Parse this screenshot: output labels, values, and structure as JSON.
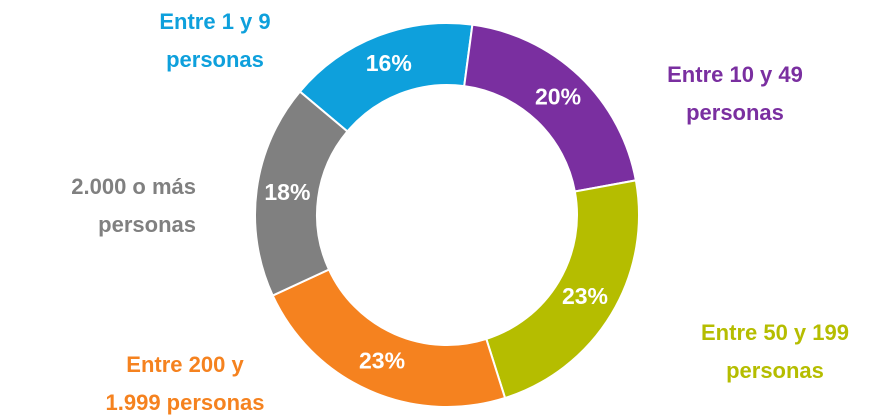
{
  "chart_data": {
    "type": "donut",
    "categories": [
      "Entre 1 y 9\npersonas",
      "Entre 10 y 49\npersonas",
      "Entre 50 y 199\npersonas",
      "Entre 200 y\n1.999 personas",
      "2.000 o más\npersonas"
    ],
    "values": [
      16,
      20,
      23,
      23,
      18
    ],
    "value_labels": [
      "16%",
      "20%",
      "23%",
      "23%",
      "18%"
    ],
    "colors": [
      "#0ea0dc",
      "#7a2fa0",
      "#b5bd00",
      "#f5821f",
      "#808080"
    ]
  }
}
